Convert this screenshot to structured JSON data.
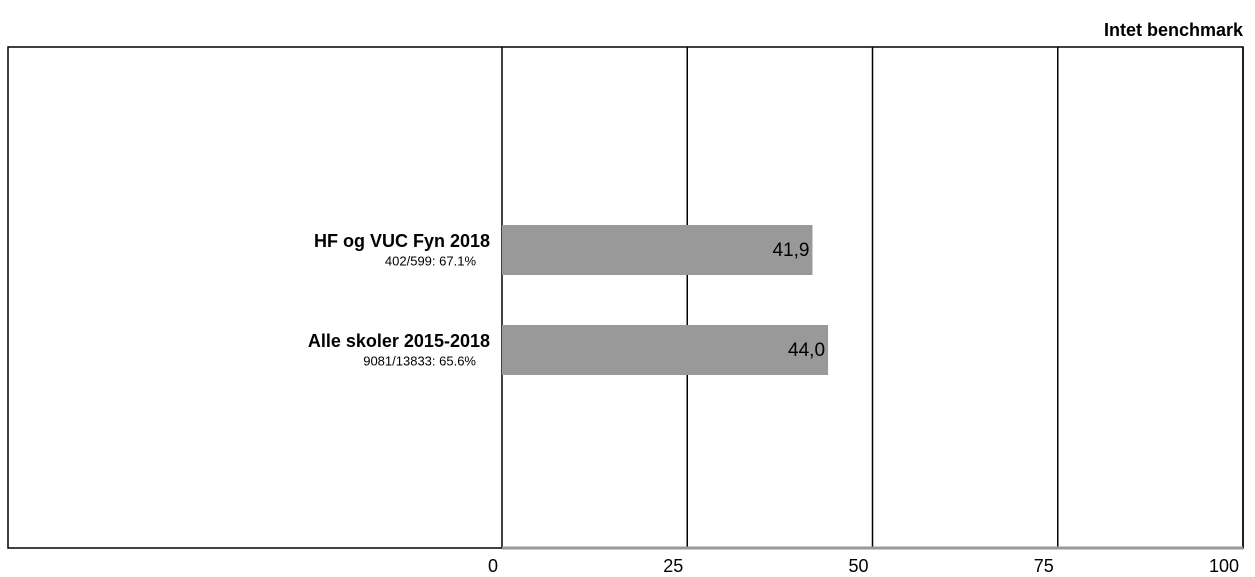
{
  "chart_data": {
    "type": "hbar",
    "title": "Intet benchmark",
    "categories": [
      "HF og VUC Fyn 2018",
      "Alle skoler 2015-2018"
    ],
    "sublabels": [
      "402/599: 67.1%",
      "9081/13833: 65.6%"
    ],
    "values": [
      41.9,
      44.0
    ],
    "value_labels": [
      "41,9",
      "44,0"
    ],
    "color": "#999999",
    "xlim": [
      0,
      100
    ],
    "xticks": [
      0,
      25,
      50,
      75,
      100
    ],
    "grid": true
  }
}
